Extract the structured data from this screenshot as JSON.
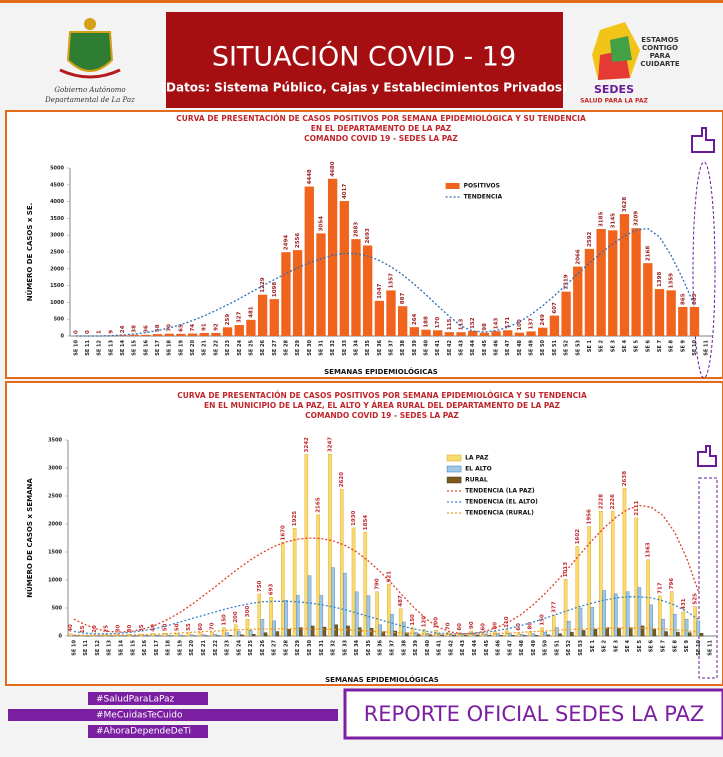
{
  "header": {
    "title": "SITUACIÓN  COVID - 19",
    "subtitle": "(Datos: Sistema Público, Cajas y Establecimientos Privados)",
    "left_logo": [
      "Gobierno Autónomo",
      "Departamental de La Paz"
    ],
    "right_logo": [
      "ESTAMOS",
      "CONTIGO",
      "PARA",
      "CUIDARTE",
      "SEDES",
      "SALUD PARA LA PAZ"
    ]
  },
  "chart_data": [
    {
      "type": "bar",
      "title": [
        "CURVA DE PRESENTACIÓN DE CASOS POSITIVOS POR SEMANA EPIDEMIOLÓGICA Y SU TENDENCIA",
        "EN EL DEPARTAMENTO DE LA PAZ",
        "COMANDO  COVID 19 - SEDES LA PAZ"
      ],
      "x_label": "SEMANAS EPIDEMIOLÓGICAS",
      "y_label": "NÚMERO DE CASOS x SE.",
      "categories": [
        "SE 10",
        "SE 11",
        "SE 12",
        "SE 13",
        "SE 14",
        "SE 15",
        "SE 16",
        "SE 17",
        "SE 18",
        "SE 19",
        "SE 20",
        "SE 21",
        "SE 22",
        "SE 23",
        "SE 24",
        "SE 25",
        "SE 26",
        "SE 27",
        "SE 28",
        "SE 29",
        "SE 30",
        "SE 31",
        "SE 32",
        "SE 33",
        "SE 34",
        "SE 35",
        "SE 36",
        "SE 37",
        "SE 38",
        "SE 39",
        "SE 40",
        "SE 41",
        "SE 42",
        "SE 43",
        "SE 44",
        "SE 45",
        "SE 46",
        "SE 47",
        "SE 48",
        "SE 49",
        "SE 50",
        "SE 51",
        "SE 52",
        "SE 53",
        "SE 1",
        "SE 2",
        "SE 3",
        "SE 4",
        "SE 5",
        "SE 6",
        "SE 7",
        "SE 8",
        "SE 9",
        "SE 10",
        "SE 11"
      ],
      "series": [
        {
          "name": "POSITIVOS",
          "type": "bar",
          "color": "#f0641e",
          "label_color": "#9b1c1c",
          "show_labels": true,
          "values": [
            0,
            0,
            1,
            9,
            24,
            38,
            36,
            58,
            70,
            65,
            74,
            91,
            92,
            259,
            327,
            481,
            1229,
            1098,
            2494,
            2556,
            4448,
            3054,
            4680,
            4017,
            2883,
            2693,
            1047,
            1357,
            887,
            264,
            188,
            170,
            115,
            113,
            152,
            98,
            143,
            171,
            100,
            137,
            249,
            607,
            1319,
            2066,
            2592,
            3185,
            3145,
            3628,
            3209,
            2168,
            1398,
            1359,
            865,
            863,
            null
          ]
        },
        {
          "name": "TENDENCIA",
          "type": "line",
          "color": "#2f6db5",
          "dashed": true,
          "values": [
            0,
            0,
            0,
            10,
            30,
            60,
            100,
            160,
            240,
            340,
            460,
            600,
            760,
            930,
            1110,
            1300,
            1490,
            1680,
            1860,
            2030,
            2180,
            2300,
            2400,
            2460,
            2450,
            2380,
            2250,
            2060,
            1820,
            1540,
            1230,
            900,
            580,
            300,
            150,
            120,
            160,
            260,
            420,
            640,
            900,
            1200,
            1520,
            1850,
            2170,
            2470,
            2740,
            2980,
            3150,
            3200,
            2950,
            2400,
            1700,
            900,
            null
          ]
        }
      ],
      "ylim": [
        0,
        5000
      ],
      "yticks": [
        0,
        500,
        1000,
        1500,
        2000,
        2500,
        3000,
        3500,
        4000,
        4500,
        5000
      ],
      "grid": false,
      "legend": "upper center"
    },
    {
      "type": "bar",
      "title": [
        "CURVA DE PRESENTACIÓN DE CASOS POSITIVOS POR SEMANA EPIDEMIOLÓGICA Y SU TENDENCIA",
        "EN EL  MUNICIPIO DE LA PAZ, EL ALTO Y ÁREA RURAL DEL DEPARTAMENTO DE LA PAZ",
        "COMANDO COVID 19 - SEDES LA PAZ"
      ],
      "x_label": "SEMANAS EPIDEMIOLÓGICAS",
      "y_label": "NÚMERO DE CASOS x SEMANA",
      "categories": [
        "SE 10",
        "SE 11",
        "SE 12",
        "SE 13",
        "SE 14",
        "SE 15",
        "SE 16",
        "SE 17",
        "SE 18",
        "SE 19",
        "SE 20",
        "SE 21",
        "SE 22",
        "SE 23",
        "SE 24",
        "SE 25",
        "SE 26",
        "SE 27",
        "SE 28",
        "SE 29",
        "SE 30",
        "SE 31",
        "SE 32",
        "SE 33",
        "SE 34",
        "SE 35",
        "SE 36",
        "SE 37",
        "SE 38",
        "SE 39",
        "SE 40",
        "SE 41",
        "SE 42",
        "SE 43",
        "SE 44",
        "SE 45",
        "SE 46",
        "SE 47",
        "SE 48",
        "SE 49",
        "SE 50",
        "SE 51",
        "SE 52",
        "SE 53",
        "SE 1",
        "SE 2",
        "SE 3",
        "SE 4",
        "SE 5",
        "SE 6",
        "SE 7",
        "SE 8",
        "SE 9",
        "SE 10",
        "SE 11"
      ],
      "series": [
        {
          "name": "LA PAZ",
          "type": "bar",
          "color": "#f7dc6f",
          "stroke": "#e59b1c",
          "label_color": "#c0262b",
          "show_labels": true,
          "values": [
            40,
            15,
            20,
            25,
            30,
            30,
            35,
            40,
            50,
            50,
            55,
            60,
            70,
            150,
            200,
            300,
            750,
            693,
            1670,
            1925,
            3242,
            2165,
            3247,
            2620,
            1930,
            1854,
            790,
            921,
            487,
            150,
            120,
            100,
            70,
            60,
            90,
            60,
            80,
            110,
            60,
            80,
            150,
            377,
            1013,
            1602,
            1956,
            2228,
            2226,
            2638,
            2111,
            1363,
            717,
            796,
            431,
            525,
            null
          ]
        },
        {
          "name": "EL ALTO",
          "type": "bar",
          "color": "#9fc8e8",
          "stroke": "#3f78b0",
          "values": [
            10,
            5,
            8,
            10,
            10,
            12,
            12,
            15,
            18,
            20,
            22,
            25,
            30,
            60,
            80,
            100,
            300,
            271,
            635,
            725,
            1075,
            725,
            1221,
            1123,
            788,
            720,
            200,
            390,
            250,
            70,
            50,
            40,
            30,
            25,
            40,
            25,
            40,
            50,
            30,
            40,
            70,
            150,
            265,
            500,
            511,
            813,
            753,
            790,
            867,
            555,
            300,
            390,
            300,
            270,
            null
          ]
        },
        {
          "name": "RURAL",
          "type": "bar",
          "color": "#7a5a1e",
          "stroke": "#4a3510",
          "values": [
            2,
            1,
            2,
            2,
            3,
            3,
            3,
            4,
            4,
            5,
            5,
            6,
            8,
            15,
            20,
            30,
            60,
            80,
            120,
            150,
            180,
            160,
            200,
            180,
            150,
            140,
            80,
            90,
            60,
            25,
            20,
            15,
            12,
            10,
            15,
            10,
            12,
            15,
            10,
            12,
            20,
            40,
            70,
            100,
            120,
            150,
            140,
            150,
            180,
            120,
            80,
            70,
            60,
            50,
            null
          ]
        },
        {
          "name": "TENDENCIA (LA PAZ)",
          "type": "line",
          "color": "#e0402a",
          "dashed": true,
          "values": [
            300,
            200,
            120,
            80,
            70,
            90,
            130,
            200,
            300,
            420,
            560,
            720,
            880,
            1050,
            1210,
            1360,
            1490,
            1600,
            1680,
            1730,
            1750,
            1740,
            1700,
            1620,
            1500,
            1340,
            1150,
            930,
            700,
            480,
            290,
            150,
            70,
            40,
            50,
            90,
            160,
            260,
            390,
            560,
            760,
            980,
            1220,
            1470,
            1710,
            1930,
            2120,
            2260,
            2330,
            2300,
            2150,
            1850,
            1400,
            800,
            null
          ]
        },
        {
          "name": "TENDENCIA (EL ALTO)",
          "type": "line",
          "color": "#3a86c8",
          "dashed": true,
          "values": [
            80,
            50,
            40,
            40,
            50,
            70,
            100,
            140,
            190,
            250,
            310,
            370,
            430,
            490,
            540,
            580,
            610,
            620,
            620,
            610,
            590,
            560,
            520,
            470,
            410,
            350,
            290,
            230,
            170,
            120,
            80,
            50,
            40,
            40,
            50,
            70,
            100,
            140,
            190,
            250,
            320,
            390,
            460,
            530,
            590,
            640,
            680,
            700,
            700,
            680,
            630,
            550,
            440,
            300,
            null
          ]
        },
        {
          "name": "TENDENCIA (RURAL)",
          "type": "line",
          "color": "#e89a2a",
          "dashed": true,
          "values": [
            20,
            15,
            12,
            12,
            14,
            18,
            24,
            32,
            42,
            54,
            66,
            78,
            90,
            100,
            110,
            118,
            124,
            128,
            130,
            130,
            128,
            124,
            118,
            110,
            100,
            88,
            76,
            64,
            52,
            42,
            34,
            28,
            26,
            26,
            30,
            36,
            44,
            54,
            66,
            78,
            90,
            102,
            114,
            124,
            132,
            138,
            142,
            144,
            142,
            136,
            126,
            112,
            94,
            72,
            null
          ]
        }
      ],
      "ylim": [
        0,
        3500
      ],
      "yticks": [
        0,
        500,
        1000,
        1500,
        2000,
        2500,
        3000,
        3500
      ],
      "grid": false,
      "legend": "upper center"
    }
  ],
  "footer": {
    "hashtags": [
      "#SaludParaLaPaz",
      "#MeCuidasTeCuido",
      "#AhoraDependeDeTi"
    ],
    "report": "REPORTE OFICIAL SEDES LA PAZ"
  }
}
